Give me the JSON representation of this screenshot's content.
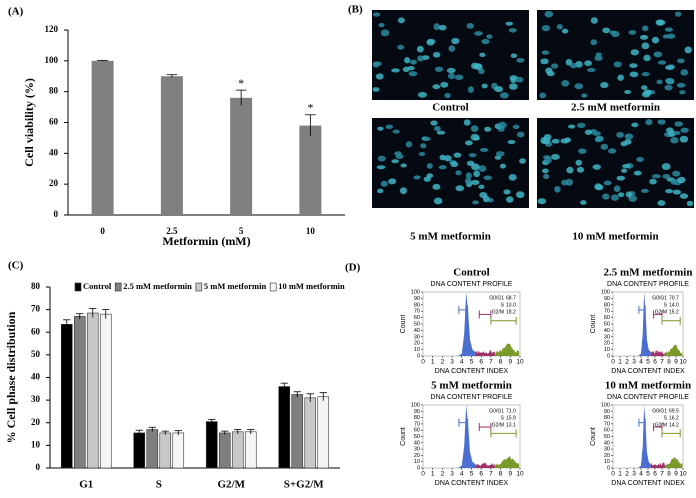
{
  "chart_data": [
    {
      "type": "bar",
      "panel_label": "(A)",
      "x_label": "Metformin (mM)",
      "y_label": "Cell viability (%)",
      "categories": [
        "0",
        "2.5",
        "5",
        "10"
      ],
      "values": [
        100,
        90,
        76,
        58
      ],
      "errors": [
        0.3,
        1,
        5,
        7
      ],
      "value_annotations": [
        null,
        null,
        "*",
        "*"
      ],
      "color": "#808080",
      "ylim": [
        0,
        120
      ],
      "yticks": [
        0,
        20,
        40,
        60,
        80,
        100,
        120
      ]
    },
    {
      "type": "bar",
      "panel_label": "(C)",
      "y_label": "% Cell phase distribution",
      "categories": [
        "G1",
        "S",
        "G2/M",
        "S+G2/M"
      ],
      "legend": "top",
      "series": [
        {
          "name": "Control",
          "color": "#000000",
          "values": [
            63.5,
            15.5,
            20.5,
            36
          ],
          "errors": [
            2,
            1.2,
            1,
            1.5
          ]
        },
        {
          "name": "2.5 mM metformin",
          "color": "#7f7f7f",
          "values": [
            67,
            17,
            15.5,
            32.5
          ],
          "errors": [
            1.2,
            1,
            0.8,
            1.2
          ]
        },
        {
          "name": "5 mM metformin",
          "color": "#c8c8c8",
          "values": [
            68.5,
            15.5,
            16,
            31
          ],
          "errors": [
            2,
            0.8,
            1,
            1.8
          ]
        },
        {
          "name": "10 mM metformin",
          "color": "#f5f5f5",
          "values": [
            68,
            15.5,
            16,
            31.5
          ],
          "errors": [
            2,
            1,
            1,
            1.8
          ]
        }
      ],
      "ylim": [
        0,
        80
      ],
      "yticks": [
        0,
        10,
        20,
        30,
        40,
        50,
        60,
        70,
        80
      ]
    }
  ],
  "panel_b": {
    "label": "(B)",
    "captions": [
      "Control",
      "2.5 mM metformin",
      "5 mM metformin",
      "10 mM metformin"
    ]
  },
  "panel_d": {
    "label": "(D)",
    "subtitle": "DNA CONTENT PROFILE",
    "x_label": "DNA CONTENT INDEX",
    "y_label": "Count",
    "xticks": [
      0,
      1,
      2,
      3,
      4,
      5,
      6,
      7,
      8,
      9,
      10
    ],
    "yticks": [
      0,
      10,
      20,
      30,
      40,
      50,
      60,
      70,
      80,
      90,
      100
    ],
    "plots": [
      {
        "title": "Control",
        "stats": [
          {
            "phase": "G0/G1",
            "value": "68.7"
          },
          {
            "phase": "S",
            "value": "13.0"
          },
          {
            "phase": "G2/M",
            "value": "18.2"
          }
        ]
      },
      {
        "title": "2.5 mM metformin",
        "stats": [
          {
            "phase": "G0/G1",
            "value": "70.7"
          },
          {
            "phase": "S",
            "value": "14.0"
          },
          {
            "phase": "G2/M",
            "value": "15.2"
          }
        ]
      },
      {
        "title": "5 mM metformin",
        "stats": [
          {
            "phase": "G0/G1",
            "value": "71.0"
          },
          {
            "phase": "S",
            "value": "15.9"
          },
          {
            "phase": "G2/M",
            "value": "13.1"
          }
        ]
      },
      {
        "title": "10 mM metformin",
        "stats": [
          {
            "phase": "G0/G1",
            "value": "69.5"
          },
          {
            "phase": "S",
            "value": "16.2"
          },
          {
            "phase": "G2/M",
            "value": "14.2"
          }
        ]
      }
    ]
  }
}
